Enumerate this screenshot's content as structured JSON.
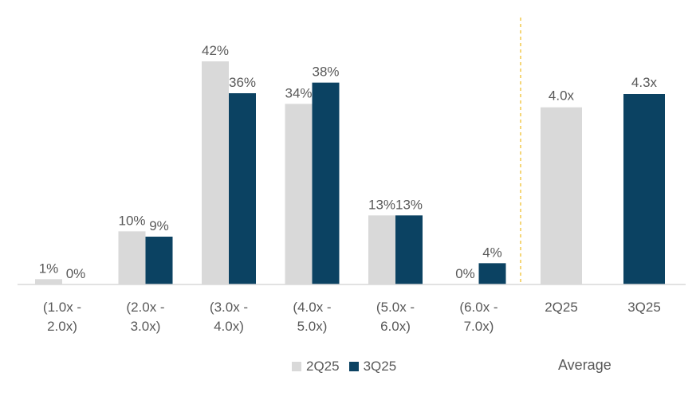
{
  "chart_data": [
    {
      "type": "bar",
      "categories": [
        "(1.0x -\n2.0x)",
        "(2.0x -\n3.0x)",
        "(3.0x -\n4.0x)",
        "(4.0x -\n5.0x)",
        "(5.0x -\n6.0x)",
        "(6.0x -\n7.0x)"
      ],
      "series": [
        {
          "name": "2Q25",
          "values": [
            1,
            10,
            42,
            34,
            13,
            0
          ],
          "labels": [
            "1%",
            "10%",
            "42%",
            "34%",
            "13%",
            "0%"
          ],
          "color": "#d9d9d9"
        },
        {
          "name": "3Q25",
          "values": [
            0,
            9,
            36,
            38,
            13,
            4
          ],
          "labels": [
            "0%",
            "9%",
            "36%",
            "38%",
            "13%",
            "4%"
          ],
          "color": "#0b4262"
        }
      ],
      "ylim": [
        0,
        42
      ],
      "grid": false,
      "legend": "bottom"
    },
    {
      "type": "bar",
      "categories": [
        "2Q25",
        "3Q25"
      ],
      "values": [
        4.0,
        4.3
      ],
      "labels": [
        "4.0x",
        "4.3x"
      ],
      "colors": [
        "#d9d9d9",
        "#0b4262"
      ],
      "xlabel": "Average"
    }
  ],
  "legend": {
    "items": [
      {
        "label": "2Q25",
        "color": "#d9d9d9"
      },
      {
        "label": "3Q25",
        "color": "#0b4262"
      }
    ]
  },
  "average_label": "Average",
  "colors": {
    "light": "#d9d9d9",
    "dark": "#0b4262",
    "divider": "#f2c94c",
    "axis": "#d9d9d9",
    "text": "#595959"
  }
}
